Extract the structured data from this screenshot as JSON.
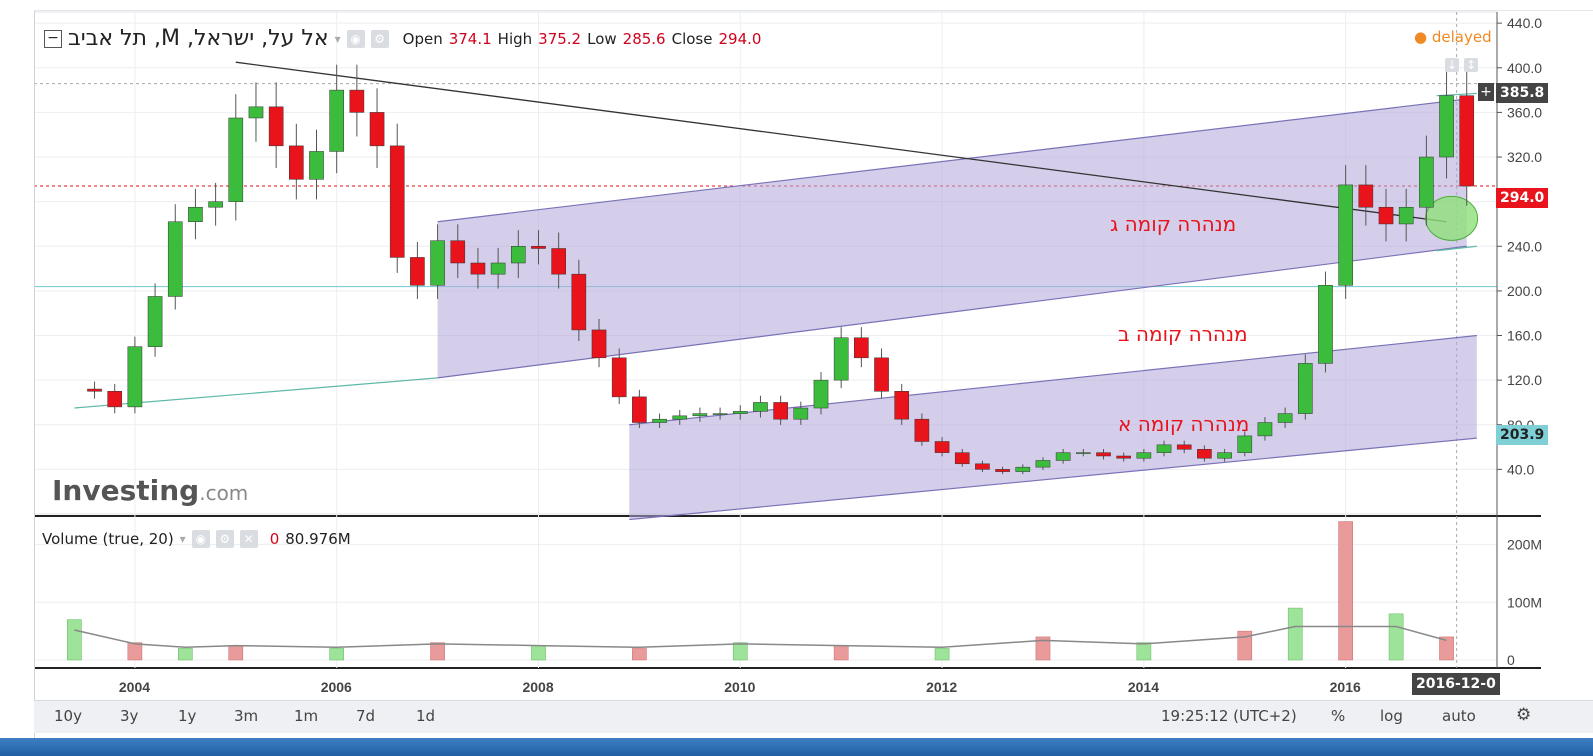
{
  "header": {
    "symbol_title": "תל אביב ,M ,אל על, ישראל",
    "open_label": "Open",
    "open_value": "374.1",
    "high_label": "High",
    "high_value": "375.2",
    "low_label": "Low",
    "low_value": "285.6",
    "close_label": "Close",
    "close_value": "294.0",
    "delayed": "delayed"
  },
  "volume_legend": {
    "label": "Volume (true, 20)",
    "value0": "0",
    "value": "80.976M"
  },
  "logo": {
    "main": "Investing",
    "suffix": ".com"
  },
  "price_tags": {
    "crosshair": "385.8",
    "last": "294.0",
    "level": "203.9"
  },
  "annotations": {
    "top": "מנהרה קומה ג",
    "middle": "מנהרה קומה ב",
    "bottom": "מנהרה קומה א"
  },
  "bottom_bar": {
    "ranges": [
      "10y",
      "3y",
      "1y",
      "3m",
      "1m",
      "7d",
      "1d"
    ],
    "time": "19:25:12 (UTC+2)",
    "percent": "%",
    "log": "log",
    "auto": "auto",
    "cursor_date": "2016-12-0"
  },
  "colors": {
    "up": "#3cbc3c",
    "down": "#e8131b",
    "channel": "#b0a6d8",
    "hline": "#7fcfd6"
  },
  "chart_data": [
    {
      "type": "candlestick",
      "title": "תל אביב ,M ,אל על, ישראל",
      "x_tick_labels": [
        "2004",
        "2006",
        "2008",
        "2010",
        "2012",
        "2014",
        "2016"
      ],
      "y_tick_labels": [
        "40.0",
        "80.0",
        "120.0",
        "160.0",
        "200.0",
        "240.0",
        "280.0",
        "320.0",
        "360.0",
        "400.0",
        "440.0"
      ],
      "ylim": [
        0,
        450
      ],
      "last_close": 294.0,
      "horizontal_level": 203.9,
      "series": [
        {
          "name": "price",
          "points": [
            [
              2003.4,
              112
            ],
            [
              2003.6,
              110
            ],
            [
              2003.8,
              96
            ],
            [
              2004.0,
              150
            ],
            [
              2004.2,
              195
            ],
            [
              2004.4,
              262
            ],
            [
              2004.6,
              275
            ],
            [
              2004.8,
              280
            ],
            [
              2005.0,
              355
            ],
            [
              2005.2,
              365
            ],
            [
              2005.4,
              330
            ],
            [
              2005.6,
              300
            ],
            [
              2005.8,
              325
            ],
            [
              2006.0,
              380
            ],
            [
              2006.2,
              360
            ],
            [
              2006.4,
              330
            ],
            [
              2006.6,
              230
            ],
            [
              2006.8,
              205
            ],
            [
              2007.0,
              245
            ],
            [
              2007.2,
              225
            ],
            [
              2007.4,
              215
            ],
            [
              2007.6,
              225
            ],
            [
              2007.8,
              240
            ],
            [
              2008.0,
              238
            ],
            [
              2008.2,
              215
            ],
            [
              2008.4,
              165
            ],
            [
              2008.6,
              140
            ],
            [
              2008.8,
              105
            ],
            [
              2009.0,
              82
            ],
            [
              2009.2,
              85
            ],
            [
              2009.4,
              88
            ],
            [
              2009.6,
              90
            ],
            [
              2009.8,
              90
            ],
            [
              2010.0,
              92
            ],
            [
              2010.2,
              100
            ],
            [
              2010.4,
              85
            ],
            [
              2010.6,
              95
            ],
            [
              2010.8,
              120
            ],
            [
              2011.0,
              158
            ],
            [
              2011.2,
              140
            ],
            [
              2011.4,
              110
            ],
            [
              2011.6,
              85
            ],
            [
              2011.8,
              65
            ],
            [
              2012.0,
              55
            ],
            [
              2012.2,
              45
            ],
            [
              2012.4,
              40
            ],
            [
              2012.6,
              38
            ],
            [
              2012.8,
              42
            ],
            [
              2013.0,
              48
            ],
            [
              2013.2,
              55
            ],
            [
              2013.4,
              55
            ],
            [
              2013.6,
              52
            ],
            [
              2013.8,
              50
            ],
            [
              2014.0,
              55
            ],
            [
              2014.2,
              62
            ],
            [
              2014.4,
              58
            ],
            [
              2014.6,
              50
            ],
            [
              2014.8,
              55
            ],
            [
              2015.0,
              70
            ],
            [
              2015.2,
              82
            ],
            [
              2015.4,
              90
            ],
            [
              2015.6,
              135
            ],
            [
              2015.8,
              205
            ],
            [
              2016.0,
              295
            ],
            [
              2016.2,
              275
            ],
            [
              2016.4,
              260
            ],
            [
              2016.6,
              275
            ],
            [
              2016.8,
              320
            ],
            [
              2017.0,
              375
            ],
            [
              2017.2,
              294
            ]
          ]
        },
        {
          "name": "Volume (true, 20)",
          "points": [
            [
              2003.4,
              70
            ],
            [
              2004.0,
              30
            ],
            [
              2004.5,
              20
            ],
            [
              2005.0,
              25
            ],
            [
              2006.0,
              20
            ],
            [
              2007.0,
              30
            ],
            [
              2008.0,
              25
            ],
            [
              2009.0,
              20
            ],
            [
              2010.0,
              30
            ],
            [
              2011.0,
              25
            ],
            [
              2012.0,
              20
            ],
            [
              2013.0,
              40
            ],
            [
              2014.0,
              30
            ],
            [
              2015.0,
              50
            ],
            [
              2015.5,
              90
            ],
            [
              2016.0,
              240
            ],
            [
              2016.5,
              80
            ],
            [
              2017.0,
              40
            ]
          ]
        }
      ]
    }
  ]
}
